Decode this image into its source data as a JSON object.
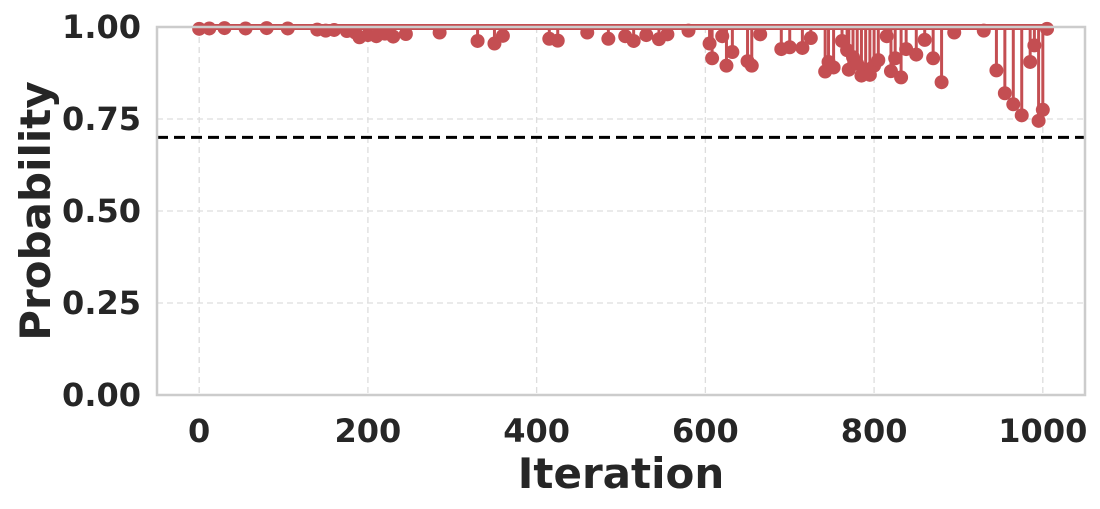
{
  "chart_data": {
    "type": "line",
    "xlabel": "Iteration",
    "ylabel": "Probability",
    "xlim": [
      -50,
      1050
    ],
    "ylim": [
      0.0,
      1.0
    ],
    "x_ticks": [
      0,
      200,
      400,
      600,
      800,
      1000
    ],
    "x_tick_labels": [
      "0",
      "200",
      "400",
      "600",
      "800",
      "1000"
    ],
    "y_ticks": [
      0.0,
      0.25,
      0.5,
      0.75,
      1.0
    ],
    "y_tick_labels": [
      "0.00",
      "0.25",
      "0.50",
      "0.75",
      "1.00"
    ],
    "grid": true,
    "reference_line": {
      "y": 0.7,
      "style": "dashed",
      "color": "#000000"
    },
    "series": [
      {
        "color": "#c44e52",
        "baseline": 1.0,
        "points": [
          [
            0,
            0.995
          ],
          [
            12,
            0.996
          ],
          [
            30,
            0.997
          ],
          [
            55,
            0.996
          ],
          [
            80,
            0.997
          ],
          [
            105,
            0.996
          ],
          [
            140,
            0.993
          ],
          [
            150,
            0.99
          ],
          [
            160,
            0.992
          ],
          [
            175,
            0.989
          ],
          [
            185,
            0.985
          ],
          [
            190,
            0.972
          ],
          [
            200,
            0.978
          ],
          [
            210,
            0.975
          ],
          [
            220,
            0.982
          ],
          [
            230,
            0.974
          ],
          [
            245,
            0.981
          ],
          [
            285,
            0.985
          ],
          [
            330,
            0.962
          ],
          [
            350,
            0.955
          ],
          [
            360,
            0.976
          ],
          [
            415,
            0.968
          ],
          [
            425,
            0.963
          ],
          [
            460,
            0.985
          ],
          [
            485,
            0.968
          ],
          [
            505,
            0.975
          ],
          [
            515,
            0.962
          ],
          [
            530,
            0.978
          ],
          [
            545,
            0.967
          ],
          [
            555,
            0.98
          ],
          [
            580,
            0.99
          ],
          [
            605,
            0.955
          ],
          [
            608,
            0.915
          ],
          [
            620,
            0.975
          ],
          [
            625,
            0.895
          ],
          [
            632,
            0.932
          ],
          [
            650,
            0.907
          ],
          [
            655,
            0.895
          ],
          [
            665,
            0.98
          ],
          [
            690,
            0.94
          ],
          [
            700,
            0.945
          ],
          [
            715,
            0.943
          ],
          [
            725,
            0.97
          ],
          [
            742,
            0.879
          ],
          [
            746,
            0.905
          ],
          [
            752,
            0.89
          ],
          [
            762,
            0.962
          ],
          [
            768,
            0.937
          ],
          [
            770,
            0.884
          ],
          [
            775,
            0.918
          ],
          [
            780,
            0.9
          ],
          [
            785,
            0.868
          ],
          [
            790,
            0.885
          ],
          [
            795,
            0.87
          ],
          [
            800,
            0.895
          ],
          [
            805,
            0.91
          ],
          [
            815,
            0.975
          ],
          [
            820,
            0.88
          ],
          [
            825,
            0.915
          ],
          [
            832,
            0.863
          ],
          [
            838,
            0.94
          ],
          [
            850,
            0.925
          ],
          [
            860,
            0.965
          ],
          [
            870,
            0.915
          ],
          [
            880,
            0.85
          ],
          [
            895,
            0.985
          ],
          [
            930,
            0.99
          ],
          [
            945,
            0.882
          ],
          [
            955,
            0.82
          ],
          [
            965,
            0.79
          ],
          [
            975,
            0.76
          ],
          [
            985,
            0.905
          ],
          [
            990,
            0.95
          ],
          [
            995,
            0.745
          ],
          [
            1000,
            0.775
          ],
          [
            1005,
            0.995
          ]
        ]
      }
    ]
  }
}
